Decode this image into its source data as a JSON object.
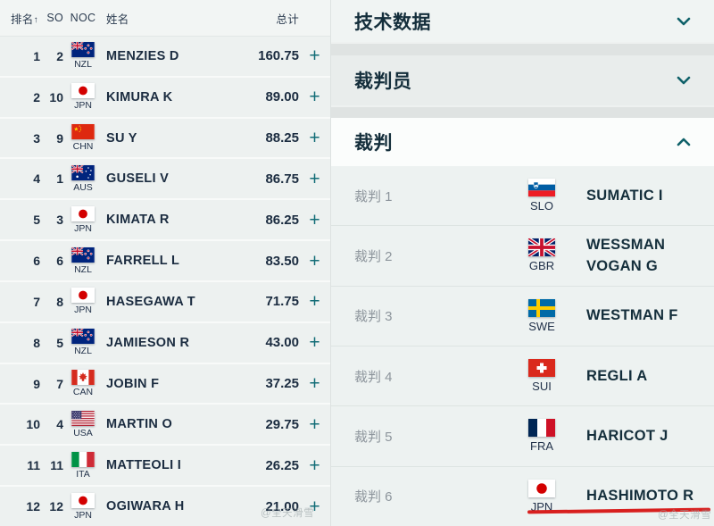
{
  "colors": {
    "accent_teal": "#136d77",
    "text_dark": "#1b2c40",
    "label_gray": "#8d959c",
    "annotation_red": "#d8201f",
    "row_bg": "#edf1f0",
    "panel_bg": "#eef2f1"
  },
  "table": {
    "header": {
      "rank": "排名",
      "sort_arrow": "↑",
      "so": "SO",
      "noc": "NOC",
      "name": "姓名",
      "total": "总计"
    },
    "plus_label": "+",
    "rows": [
      {
        "rank": "1",
        "so": "2",
        "noc": "NZL",
        "name": "MENZIES D",
        "total": "160.75"
      },
      {
        "rank": "2",
        "so": "10",
        "noc": "JPN",
        "name": "KIMURA K",
        "total": "89.00"
      },
      {
        "rank": "3",
        "so": "9",
        "noc": "CHN",
        "name": "SU Y",
        "total": "88.25"
      },
      {
        "rank": "4",
        "so": "1",
        "noc": "AUS",
        "name": "GUSELI V",
        "total": "86.75"
      },
      {
        "rank": "5",
        "so": "3",
        "noc": "JPN",
        "name": "KIMATA R",
        "total": "86.25"
      },
      {
        "rank": "6",
        "so": "6",
        "noc": "NZL",
        "name": "FARRELL L",
        "total": "83.50"
      },
      {
        "rank": "7",
        "so": "8",
        "noc": "JPN",
        "name": "HASEGAWA T",
        "total": "71.75"
      },
      {
        "rank": "8",
        "so": "5",
        "noc": "NZL",
        "name": "JAMIESON R",
        "total": "43.00"
      },
      {
        "rank": "9",
        "so": "7",
        "noc": "CAN",
        "name": "JOBIN F",
        "total": "37.25"
      },
      {
        "rank": "10",
        "so": "4",
        "noc": "USA",
        "name": "MARTIN O",
        "total": "29.75"
      },
      {
        "rank": "11",
        "so": "11",
        "noc": "ITA",
        "name": "MATTEOLI I",
        "total": "26.25"
      },
      {
        "rank": "12",
        "so": "12",
        "noc": "JPN",
        "name": "OGIWARA H",
        "total": "21.00"
      }
    ]
  },
  "accordion": {
    "sections": [
      {
        "label": "技术数据",
        "state": "collapsed"
      },
      {
        "label": "裁判员",
        "state": "collapsed"
      },
      {
        "label": "裁判",
        "state": "expanded"
      }
    ]
  },
  "judges": [
    {
      "label": "裁判 1",
      "noc": "SLO",
      "name": "SUMATIC I"
    },
    {
      "label": "裁判 2",
      "noc": "GBR",
      "name": "WESSMAN VOGAN G"
    },
    {
      "label": "裁判 3",
      "noc": "SWE",
      "name": "WESTMAN F"
    },
    {
      "label": "裁判 4",
      "noc": "SUI",
      "name": "REGLI A"
    },
    {
      "label": "裁判 5",
      "noc": "FRA",
      "name": "HARICOT J"
    },
    {
      "label": "裁判 6",
      "noc": "JPN",
      "name": "HASHIMOTO R"
    }
  ],
  "watermark": {
    "text": "@全天滑雪"
  }
}
